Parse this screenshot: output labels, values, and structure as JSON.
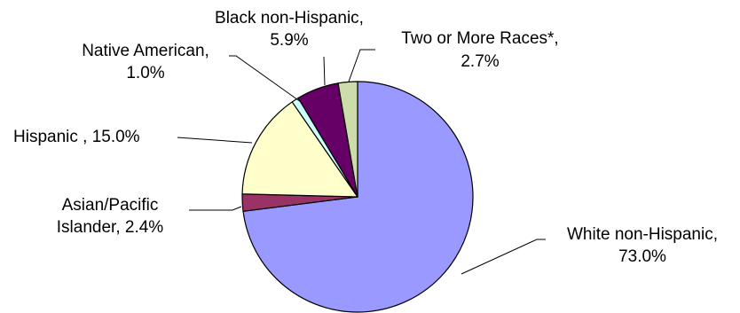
{
  "chart_data": {
    "type": "pie",
    "title": "",
    "start_angle_deg": 0,
    "direction": "clockwise",
    "slices": [
      {
        "label": "White non-Hispanic",
        "value": 73.0,
        "value_text": "73.0%",
        "color": "#9999FF"
      },
      {
        "label": "Asian/Pacific Islander",
        "value": 2.4,
        "value_text": "2.4%",
        "color": "#993366"
      },
      {
        "label": "Hispanic",
        "value": 15.0,
        "value_text": "15.0%",
        "color": "#FFFFCC"
      },
      {
        "label": "Native American",
        "value": 1.0,
        "value_text": "1.0%",
        "color": "#CCFFFF"
      },
      {
        "label": "Black non-Hispanic",
        "value": 5.9,
        "value_text": "5.9%",
        "color": "#660066"
      },
      {
        "label": "Two or More Races*",
        "value": 2.7,
        "value_text": "2.7%",
        "color": "#CCDDAA"
      }
    ],
    "data_labels": {
      "white": {
        "line1": "White non-Hispanic,",
        "line2": "73.0%"
      },
      "asian": {
        "line1": "Asian/Pacific",
        "line2": "Islander, 2.4%"
      },
      "hispanic": {
        "line1": "Hispanic , 15.0%"
      },
      "native": {
        "line1": "Native American,",
        "line2": "1.0%"
      },
      "black": {
        "line1": "Black non-Hispanic,",
        "line2": "5.9%"
      },
      "two": {
        "line1": "Two or More Races*,",
        "line2": "2.7%"
      }
    }
  }
}
